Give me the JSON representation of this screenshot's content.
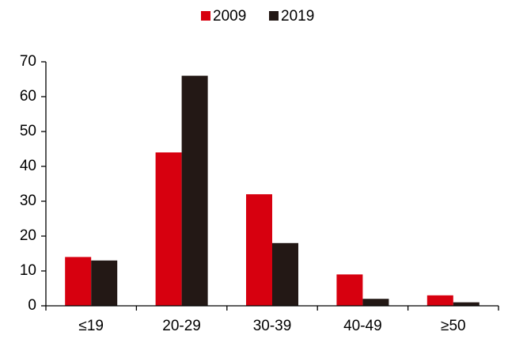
{
  "chart_data": {
    "type": "bar",
    "categories": [
      "≤19",
      "20-29",
      "30-39",
      "40-49",
      "≥50"
    ],
    "series": [
      {
        "name": "2009",
        "color": "#d7000f",
        "values": [
          14,
          44,
          32,
          9,
          3
        ]
      },
      {
        "name": "2019",
        "color": "#231815",
        "values": [
          13,
          66,
          18,
          2,
          1
        ]
      }
    ],
    "ylim": [
      0,
      70
    ],
    "yticks": [
      0,
      10,
      20,
      30,
      40,
      50,
      60,
      70
    ],
    "grid": false,
    "legend": "top"
  }
}
